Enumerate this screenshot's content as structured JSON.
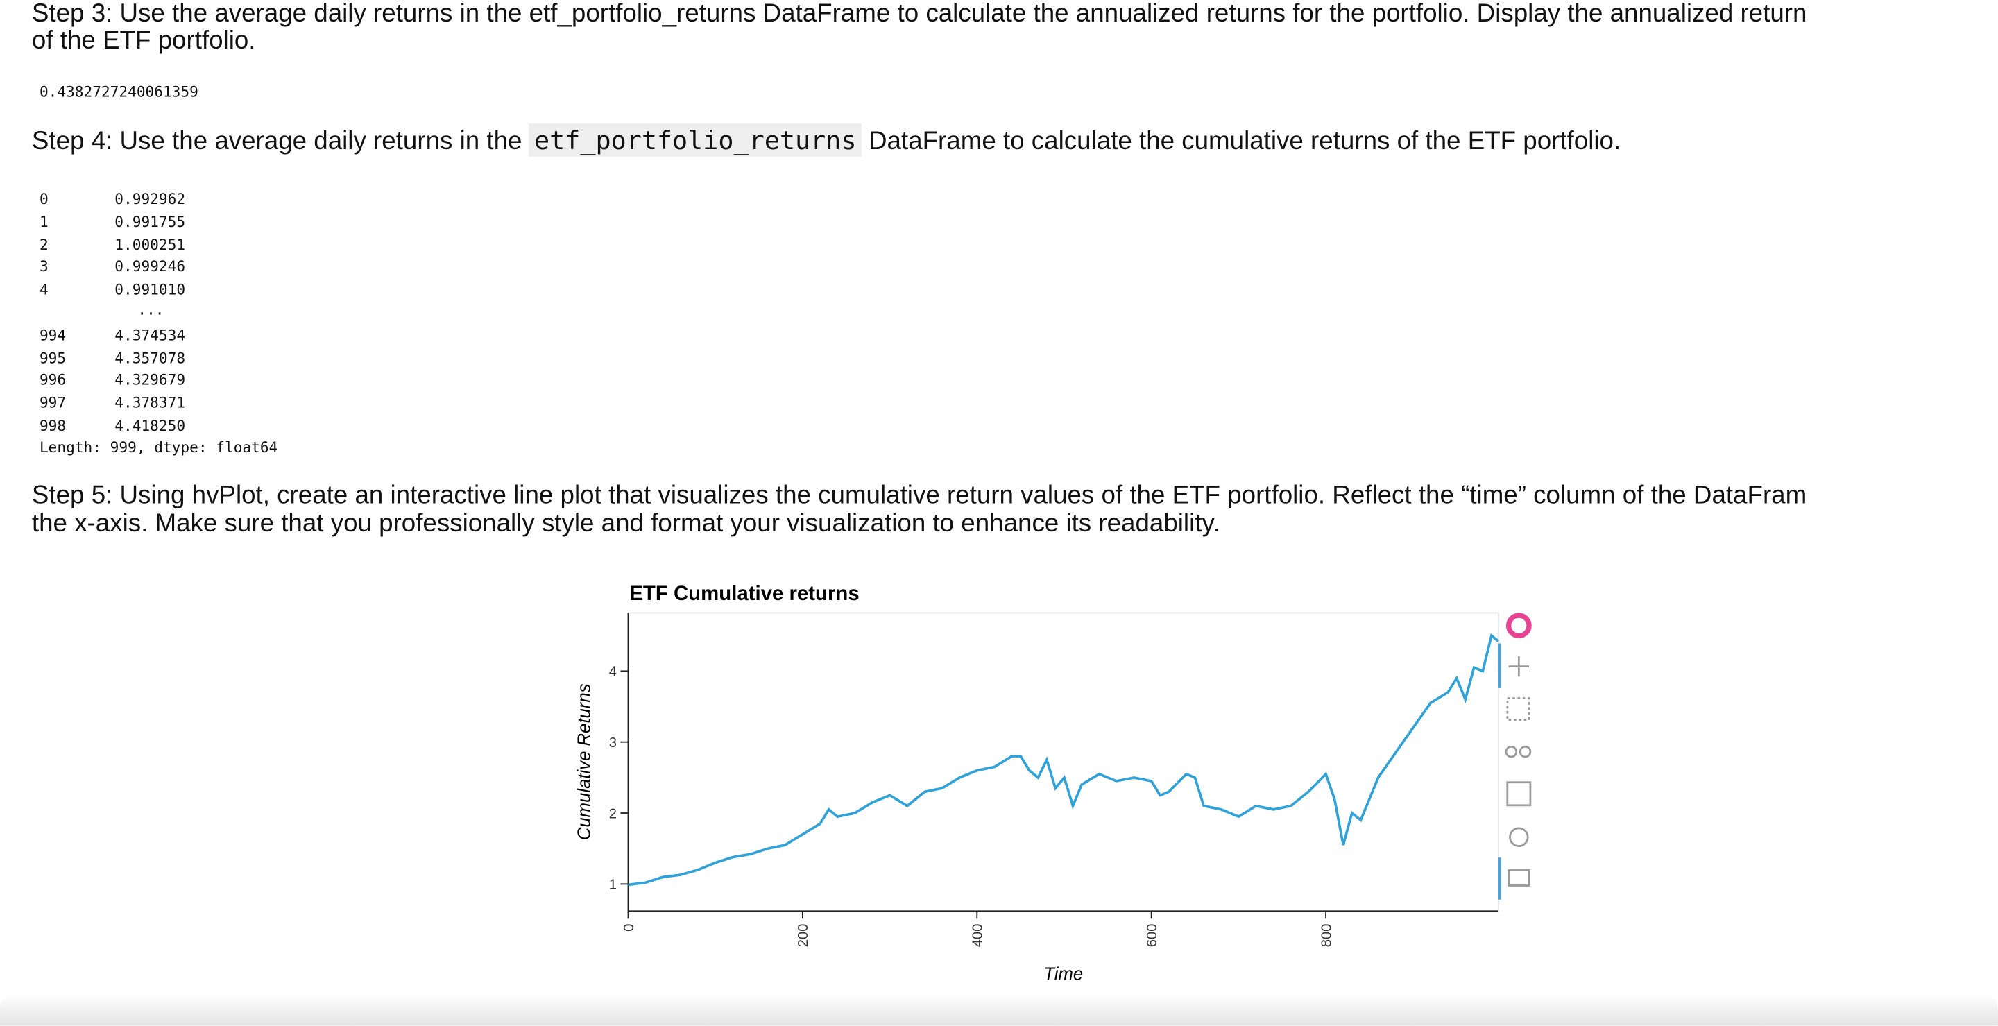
{
  "step3": {
    "lines": [
      "Step 3: Use the average daily returns in the etf_portfolio_returns DataFrame to calculate the annualized returns for the portfolio. Display the annualized return",
      "of the ETF portfolio."
    ]
  },
  "output3": "0.4382727240061359",
  "step4": {
    "text_before": "Step 4: Use the average daily returns in the",
    "code": "etf_portfolio_returns",
    "text_after": "DataFrame to calculate the cumulative returns of the ETF portfolio."
  },
  "output4": {
    "rows": [
      [
        "0",
        "0.992962"
      ],
      [
        "1",
        "0.991755"
      ],
      [
        "2",
        "1.000251"
      ],
      [
        "3",
        "0.999246"
      ],
      [
        "4",
        "0.991010"
      ],
      [
        "994",
        "4.374534"
      ],
      [
        "995",
        "4.357078"
      ],
      [
        "996",
        "4.329679"
      ],
      [
        "997",
        "4.378371"
      ],
      [
        "998",
        "4.418250"
      ]
    ],
    "ellipsis": "...",
    "footer": "Length: 999, dtype: float64"
  },
  "step5": {
    "lines": [
      "Step 5: Using hvPlot, create an interactive line plot that visualizes the cumulative return values of the ETF portfolio. Reflect the “time” column of the DataFram",
      "the x-axis. Make sure that you professionally style and format your visualization to enhance its readability."
    ]
  },
  "chart_data": {
    "type": "line",
    "title": "ETF Cumulative returns",
    "x_label": "Time",
    "y_label": "Cumulative Returns",
    "color": "#30a2da",
    "x": [
      0,
      20,
      40,
      60,
      80,
      100,
      120,
      140,
      160,
      180,
      200,
      220,
      230,
      240,
      260,
      280,
      300,
      320,
      340,
      360,
      380,
      400,
      420,
      440,
      450,
      460,
      470,
      480,
      490,
      500,
      510,
      520,
      540,
      560,
      580,
      600,
      610,
      620,
      640,
      650,
      660,
      680,
      700,
      720,
      740,
      760,
      780,
      800,
      810,
      820,
      830,
      840,
      860,
      880,
      900,
      920,
      940,
      950,
      960,
      970,
      980,
      990,
      998
    ],
    "values": [
      0.99,
      1.02,
      1.1,
      1.13,
      1.2,
      1.3,
      1.38,
      1.42,
      1.5,
      1.55,
      1.7,
      1.85,
      2.05,
      1.95,
      2.0,
      2.15,
      2.25,
      2.1,
      2.3,
      2.35,
      2.5,
      2.6,
      2.65,
      2.8,
      2.8,
      2.6,
      2.5,
      2.75,
      2.35,
      2.5,
      2.1,
      2.4,
      2.55,
      2.45,
      2.5,
      2.45,
      2.25,
      2.3,
      2.55,
      2.5,
      2.1,
      2.05,
      1.95,
      2.1,
      2.05,
      2.1,
      2.3,
      2.55,
      2.2,
      1.55,
      2.0,
      1.9,
      2.5,
      2.85,
      3.2,
      3.55,
      3.7,
      3.9,
      3.6,
      4.05,
      4.0,
      4.5,
      4.42
    ],
    "xlim": [
      0,
      998
    ],
    "ylim": [
      0.62,
      4.82
    ],
    "xticks": [
      0,
      200,
      400,
      600,
      800
    ],
    "yticks": [
      1,
      2,
      3,
      4
    ]
  }
}
